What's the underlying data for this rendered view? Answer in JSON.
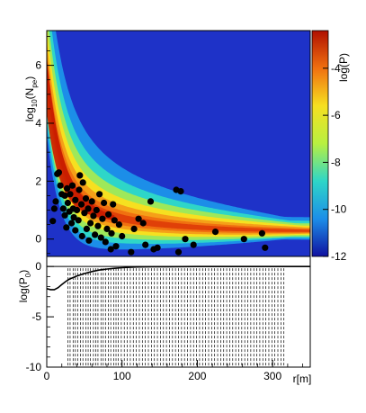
{
  "chart_data": [
    {
      "type": "heatmap",
      "title": "",
      "xlabel": "",
      "ylabel": "log10(Npe)",
      "ylabel_main": "log",
      "ylabel_sub": "10",
      "ylabel_paren": "(N",
      "ylabel_sub2": "pe",
      "ylabel_close": ")",
      "xlim": [
        0,
        350
      ],
      "ylim": [
        -0.6,
        7.2
      ],
      "y_ticks": [
        "0",
        "2",
        "4",
        "6"
      ],
      "colorbar": {
        "label": "log(P)",
        "range": [
          -12,
          -2.4
        ],
        "ticks": [
          "-4",
          "-6",
          "-8",
          "-10",
          "-12"
        ],
        "colors": [
          "#1010a0",
          "#1c8ee8",
          "#2ed6c8",
          "#b8f040",
          "#f6e020",
          "#f07010",
          "#b01000"
        ]
      },
      "density_peak_color": "#c81a00",
      "background_color": "#1e32c8",
      "points": [
        {
          "x": 8,
          "y": 0.62
        },
        {
          "x": 10,
          "y": 1.05
        },
        {
          "x": 12,
          "y": 1.3
        },
        {
          "x": 14,
          "y": 2.25
        },
        {
          "x": 16,
          "y": 2.3
        },
        {
          "x": 18,
          "y": 1.85
        },
        {
          "x": 20,
          "y": 1.55
        },
        {
          "x": 22,
          "y": 1.05
        },
        {
          "x": 24,
          "y": 0.82
        },
        {
          "x": 24,
          "y": 1.5
        },
        {
          "x": 26,
          "y": 0.4
        },
        {
          "x": 27,
          "y": 1.75
        },
        {
          "x": 28,
          "y": 1.25
        },
        {
          "x": 30,
          "y": 0.95
        },
        {
          "x": 31,
          "y": 1.55
        },
        {
          "x": 33,
          "y": 0.55
        },
        {
          "x": 34,
          "y": 1.85
        },
        {
          "x": 35,
          "y": 1.05
        },
        {
          "x": 36,
          "y": 0.75
        },
        {
          "x": 38,
          "y": 1.35
        },
        {
          "x": 38,
          "y": 0.3
        },
        {
          "x": 40,
          "y": 1.0
        },
        {
          "x": 42,
          "y": 0.65
        },
        {
          "x": 43,
          "y": 1.7
        },
        {
          "x": 44,
          "y": 2.2
        },
        {
          "x": 46,
          "y": 1.2
        },
        {
          "x": 47,
          "y": 0.1
        },
        {
          "x": 48,
          "y": 1.95
        },
        {
          "x": 50,
          "y": 0.9
        },
        {
          "x": 52,
          "y": 1.4
        },
        {
          "x": 53,
          "y": 0.35
        },
        {
          "x": 55,
          "y": 1.05
        },
        {
          "x": 56,
          "y": -0.05
        },
        {
          "x": 58,
          "y": 0.55
        },
        {
          "x": 60,
          "y": 1.3
        },
        {
          "x": 62,
          "y": 0.8
        },
        {
          "x": 64,
          "y": 0.15
        },
        {
          "x": 66,
          "y": 1.0
        },
        {
          "x": 68,
          "y": 0.45
        },
        {
          "x": 70,
          "y": 1.55
        },
        {
          "x": 72,
          "y": 0.05
        },
        {
          "x": 74,
          "y": 0.7
        },
        {
          "x": 76,
          "y": 1.25
        },
        {
          "x": 78,
          "y": -0.1
        },
        {
          "x": 80,
          "y": 0.35
        },
        {
          "x": 82,
          "y": 0.85
        },
        {
          "x": 85,
          "y": -0.35
        },
        {
          "x": 86,
          "y": 0.2
        },
        {
          "x": 88,
          "y": 1.2
        },
        {
          "x": 90,
          "y": 0.65
        },
        {
          "x": 92,
          "y": -0.25
        },
        {
          "x": 96,
          "y": 0.5
        },
        {
          "x": 100,
          "y": 0.1
        },
        {
          "x": 112,
          "y": -0.45
        },
        {
          "x": 116,
          "y": 0.35
        },
        {
          "x": 122,
          "y": 0.7
        },
        {
          "x": 128,
          "y": 0.55
        },
        {
          "x": 131,
          "y": -0.2
        },
        {
          "x": 138,
          "y": 1.3
        },
        {
          "x": 142,
          "y": -0.35
        },
        {
          "x": 147,
          "y": -0.3
        },
        {
          "x": 172,
          "y": 1.7
        },
        {
          "x": 178,
          "y": 1.65
        },
        {
          "x": 175,
          "y": -0.45
        },
        {
          "x": 184,
          "y": 0.0
        },
        {
          "x": 195,
          "y": -0.2
        },
        {
          "x": 224,
          "y": 0.25
        },
        {
          "x": 262,
          "y": 0.0
        },
        {
          "x": 286,
          "y": 0.2
        },
        {
          "x": 290,
          "y": -0.3
        }
      ]
    },
    {
      "type": "line",
      "title": "",
      "xlabel": "r[m]",
      "ylabel": "log(P0)",
      "ylabel_main": "log(P",
      "ylabel_sub": "0",
      "ylabel_close": ")",
      "xlim": [
        0,
        350
      ],
      "ylim": [
        -10,
        1
      ],
      "x_ticks": [
        "0",
        "100",
        "200",
        "300"
      ],
      "y_ticks": [
        "0",
        "-5",
        "-10"
      ],
      "curve": {
        "x": [
          0,
          5,
          10,
          15,
          20,
          25,
          30,
          40,
          50,
          60,
          70,
          80,
          90,
          100,
          110,
          120,
          140,
          160,
          180,
          200,
          250,
          300,
          350
        ],
        "y": [
          -2.2,
          -2.3,
          -2.3,
          -2.1,
          -1.8,
          -1.5,
          -1.25,
          -0.95,
          -0.7,
          -0.5,
          -0.35,
          -0.25,
          -0.18,
          -0.12,
          -0.08,
          -0.05,
          -0.03,
          -0.02,
          -0.01,
          0.0,
          0.0,
          0.0,
          0.0
        ]
      },
      "pmt_radii": [
        28,
        31,
        35,
        38,
        41,
        45,
        48,
        52,
        55,
        58,
        62,
        65,
        68,
        72,
        75,
        78,
        82,
        85,
        89,
        92,
        95,
        99,
        103,
        107,
        111,
        115,
        119,
        123,
        127,
        131,
        135,
        139,
        143,
        147,
        151,
        155,
        159,
        163,
        167,
        171,
        175,
        179,
        183,
        187,
        191,
        195,
        199,
        203,
        207,
        211,
        215,
        219,
        223,
        227,
        231,
        235,
        239,
        243,
        247,
        251,
        255,
        259,
        263,
        267,
        271,
        275,
        279,
        283,
        287,
        291,
        295,
        299,
        303,
        307,
        311,
        315
      ]
    }
  ]
}
